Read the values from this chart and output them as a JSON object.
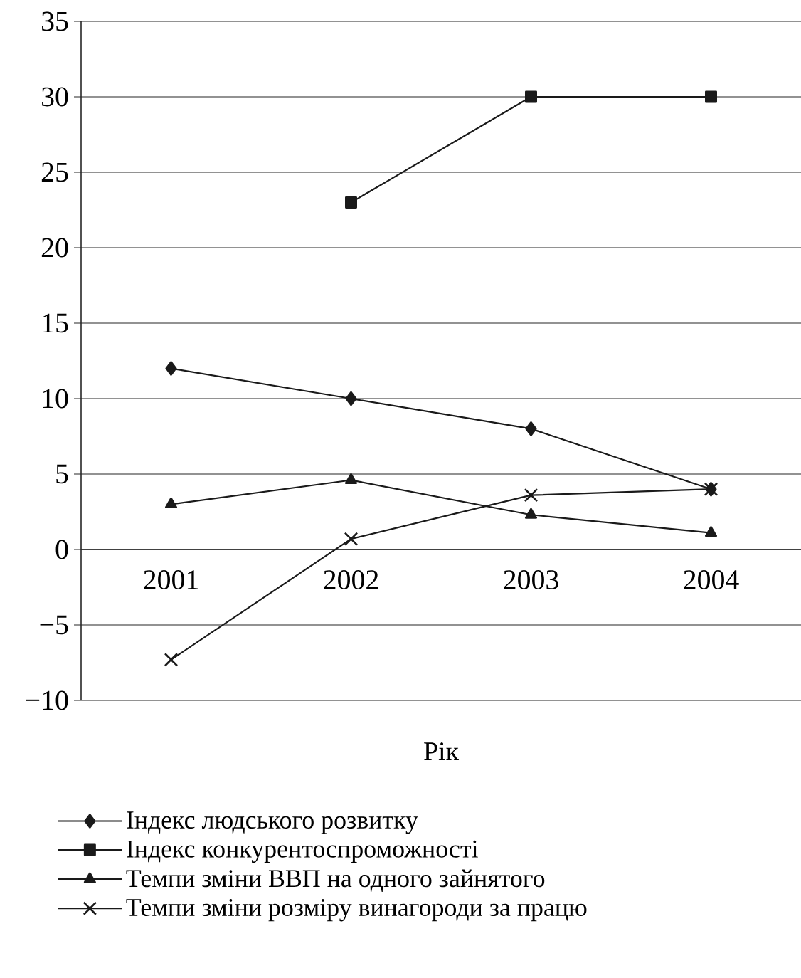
{
  "chart_data": {
    "type": "line",
    "xlabel": "Рік",
    "categories": [
      "2001",
      "2002",
      "2003",
      "2004"
    ],
    "series": [
      {
        "name": "Індекс людського розвитку",
        "color": "#1a1a1a",
        "marker": "diamond",
        "values": [
          12,
          10,
          8,
          4
        ]
      },
      {
        "name": "Індекс конкурентоспроможності",
        "color": "#1a1a1a",
        "marker": "square",
        "values": [
          null,
          23,
          30,
          30
        ]
      },
      {
        "name": "Темпи зміни ВВП на одного зайнятого",
        "color": "#1a1a1a",
        "marker": "triangle",
        "values": [
          3,
          4.6,
          2.3,
          1.1
        ]
      },
      {
        "name": "Темпи зміни розміру винагороди за працю",
        "color": "#1a1a1a",
        "marker": "cross",
        "values": [
          -7.3,
          0.7,
          3.6,
          4.0
        ]
      }
    ],
    "ylim": [
      -10,
      35
    ],
    "yticks": [
      {
        "value": -10,
        "label": "−10"
      },
      {
        "value": -5,
        "label": "−5"
      },
      0,
      5,
      10,
      15,
      20,
      25,
      30,
      35
    ],
    "grid": "y",
    "legend": "bottom",
    "line_style": "solid"
  }
}
